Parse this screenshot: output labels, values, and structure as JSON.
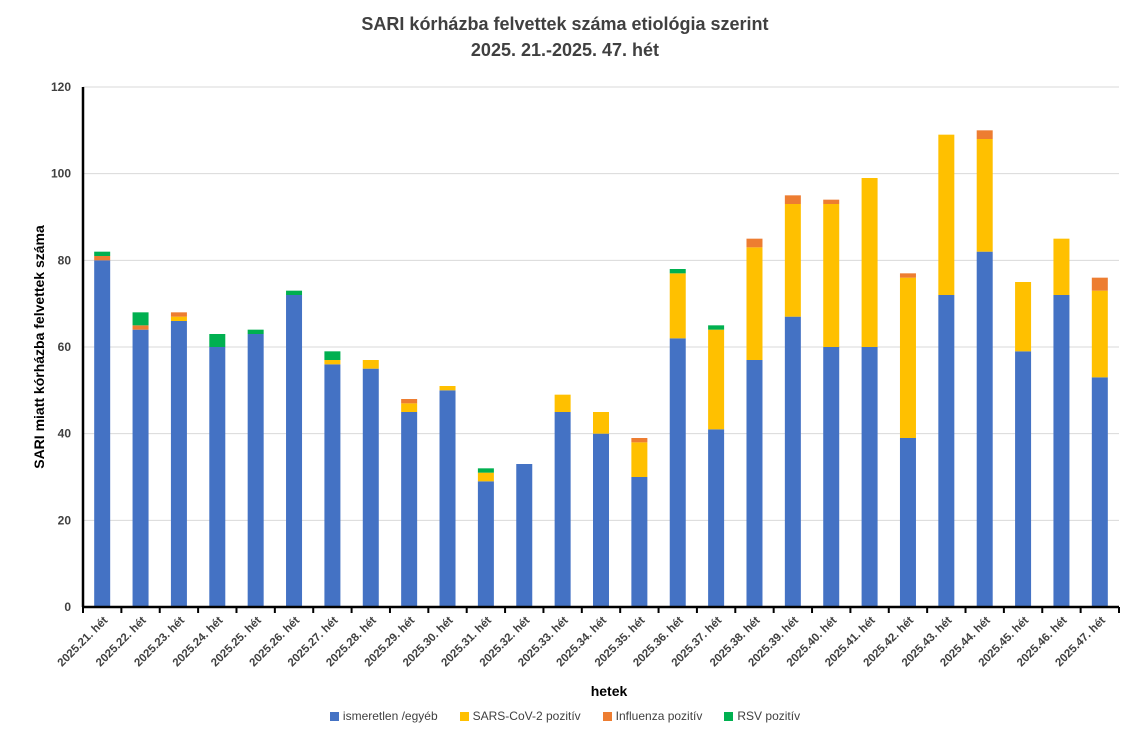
{
  "title_line1": "SARI kórházba felvettek száma etiológia szerint",
  "title_line2": "2025. 21.-2025. 47. hét",
  "chart_data": {
    "type": "bar",
    "stacked": true,
    "xlabel": "hetek",
    "ylabel": "SARI miatt kórházba felvettek száma",
    "ylim": [
      0,
      120
    ],
    "yticks": [
      0,
      20,
      40,
      60,
      80,
      100,
      120
    ],
    "categories": [
      "2025.21. hét",
      "2025.22. hét",
      "2025.23. hét",
      "2025.24. hét",
      "2025.25. hét",
      "2025.26. hét",
      "2025.27. hét",
      "2025.28. hét",
      "2025.29. hét",
      "2025.30. hét",
      "2025.31. hét",
      "2025.32. hét",
      "2025.33. hét",
      "2025.34. hét",
      "2025.35. hét",
      "2025.36. hét",
      "2025.37. hét",
      "2025.38. hét",
      "2025.39. hét",
      "2025.40. hét",
      "2025.41. hét",
      "2025.42. hét",
      "2025.43. hét",
      "2025.44. hét",
      "2025.45. hét",
      "2025.46. hét",
      "2025.47. hét"
    ],
    "series": [
      {
        "name": "ismeretlen /egyéb",
        "color": "#4472C4",
        "values": [
          80,
          64,
          66,
          60,
          63,
          72,
          56,
          55,
          45,
          50,
          29,
          33,
          45,
          40,
          30,
          62,
          41,
          57,
          67,
          60,
          60,
          39,
          72,
          82,
          59,
          72,
          53
        ]
      },
      {
        "name": "SARS-CoV-2 pozitív",
        "color": "#FFC000",
        "values": [
          0,
          0,
          1,
          0,
          0,
          0,
          1,
          2,
          2,
          1,
          2,
          0,
          4,
          5,
          8,
          15,
          23,
          26,
          26,
          33,
          39,
          37,
          37,
          26,
          16,
          13,
          20
        ]
      },
      {
        "name": "Influenza pozitív",
        "color": "#ED7D31",
        "values": [
          1,
          1,
          1,
          0,
          0,
          0,
          0,
          0,
          1,
          0,
          0,
          0,
          0,
          0,
          1,
          0,
          0,
          2,
          2,
          1,
          0,
          1,
          0,
          2,
          0,
          0,
          3
        ]
      },
      {
        "name": "RSV pozitív",
        "color": "#00B050",
        "values": [
          1,
          3,
          0,
          3,
          1,
          1,
          2,
          0,
          0,
          0,
          1,
          0,
          0,
          0,
          0,
          1,
          1,
          0,
          0,
          0,
          0,
          0,
          0,
          0,
          0,
          0,
          0
        ]
      }
    ],
    "grid": true,
    "legend_position": "bottom"
  }
}
